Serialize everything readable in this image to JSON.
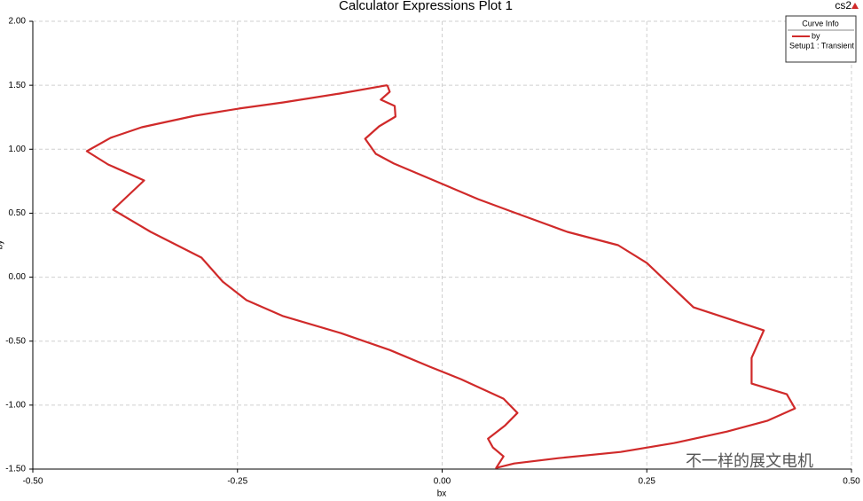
{
  "chart_data": {
    "type": "line",
    "title": "Calculator Expressions Plot 1",
    "corner_label": "cs2",
    "x_label": "bx",
    "y_label": "by",
    "xlim": [
      -0.5,
      0.5
    ],
    "ylim": [
      -1.5,
      2
    ],
    "xticks": [
      {
        "value": -0.5,
        "label": "-0.50"
      },
      -0.25,
      {
        "value": 0,
        "label": "0.00"
      },
      0.25,
      {
        "value": 0.5,
        "label": "0.50"
      }
    ],
    "yticks": [
      {
        "value": 2,
        "label": "2.00"
      },
      {
        "value": 1.5,
        "label": "1.50"
      },
      {
        "value": 1,
        "label": "1.00"
      },
      {
        "value": 0.5,
        "label": "0.50"
      },
      {
        "value": 0,
        "label": "0.00"
      },
      {
        "value": -0.5,
        "label": "-0.50"
      },
      {
        "value": -1,
        "label": "-1.00"
      },
      {
        "value": -1.5,
        "label": "-1.50"
      }
    ],
    "grid": true,
    "legend": {
      "title": "Curve Info",
      "position": "top-right"
    },
    "series": [
      {
        "name": "by",
        "legend_note": "Setup1 : Transient",
        "color": "#d02a2a",
        "x": [
          -0.067,
          -0.125,
          -0.194,
          -0.248,
          -0.302,
          -0.367,
          -0.405,
          -0.434,
          -0.408,
          -0.364,
          -0.402,
          -0.356,
          -0.294,
          -0.268,
          -0.239,
          -0.194,
          -0.124,
          -0.064,
          -0.015,
          0.023,
          0.075,
          0.092,
          0.077,
          0.056,
          0.062,
          0.075,
          0.066,
          0.088,
          0.142,
          0.218,
          0.283,
          0.348,
          0.397,
          0.431,
          0.421,
          0.378,
          0.378,
          0.393,
          0.307,
          0.25,
          0.215,
          0.153,
          0.088,
          0.044,
          -0.01,
          -0.059,
          -0.081,
          -0.094,
          -0.077,
          -0.057,
          -0.058,
          -0.075,
          -0.064,
          -0.067
        ],
        "values": [
          1.5,
          1.435,
          1.366,
          1.318,
          1.262,
          1.172,
          1.089,
          0.985,
          0.881,
          0.756,
          0.527,
          0.354,
          0.153,
          -0.035,
          -0.18,
          -0.305,
          -0.437,
          -0.569,
          -0.7,
          -0.797,
          -0.95,
          -1.061,
          -1.158,
          -1.262,
          -1.331,
          -1.401,
          -1.491,
          -1.456,
          -1.415,
          -1.366,
          -1.297,
          -1.207,
          -1.123,
          -1.026,
          -0.915,
          -0.832,
          -0.631,
          -0.416,
          -0.236,
          0.111,
          0.25,
          0.354,
          0.506,
          0.61,
          0.756,
          0.888,
          0.964,
          1.082,
          1.179,
          1.255,
          1.338,
          1.387,
          1.449,
          1.5
        ]
      }
    ]
  },
  "watermark": "不一样的展文电机"
}
